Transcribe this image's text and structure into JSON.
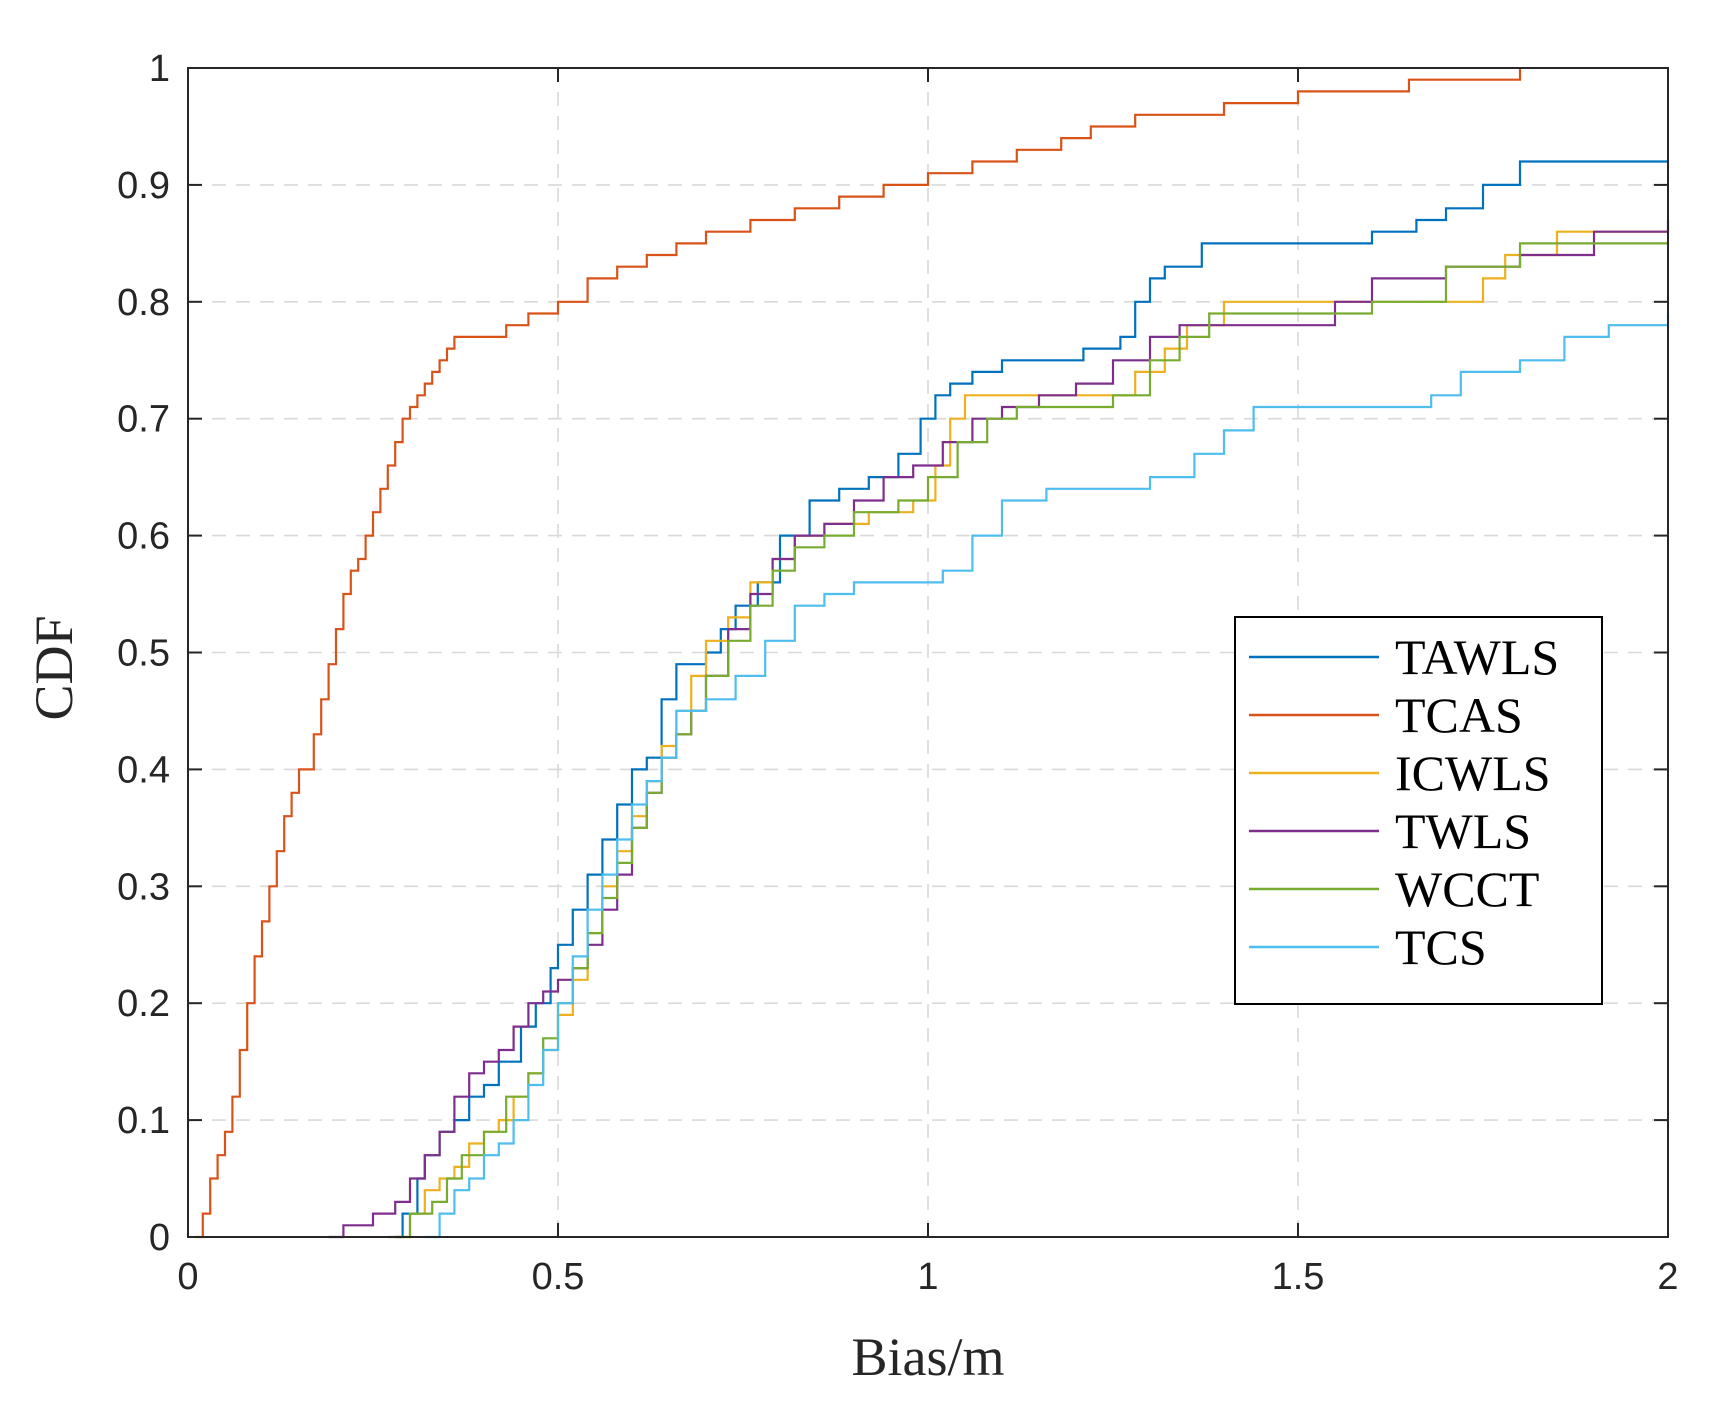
{
  "chart_data": {
    "type": "line",
    "title": "",
    "xlabel": "Bias/m",
    "ylabel": "CDF",
    "xlim": [
      0,
      2
    ],
    "ylim": [
      0,
      1
    ],
    "xticks": [
      0,
      0.5,
      1,
      1.5,
      2
    ],
    "xtick_labels": [
      "0",
      "0.5",
      "1",
      "1.5",
      "2"
    ],
    "yticks": [
      0,
      0.1,
      0.2,
      0.3,
      0.4,
      0.5,
      0.6,
      0.7,
      0.8,
      0.9,
      1
    ],
    "ytick_labels": [
      "0",
      "0.1",
      "0.2",
      "0.3",
      "0.4",
      "0.5",
      "0.6",
      "0.7",
      "0.8",
      "0.9",
      "1"
    ],
    "grid": true,
    "legend_position": "center-right",
    "series": [
      {
        "name": "TAWLS",
        "color": "#0072BD",
        "x": [
          0.28,
          0.29,
          0.31,
          0.32,
          0.34,
          0.36,
          0.38,
          0.4,
          0.42,
          0.45,
          0.47,
          0.49,
          0.5,
          0.52,
          0.54,
          0.56,
          0.58,
          0.6,
          0.62,
          0.64,
          0.66,
          0.7,
          0.72,
          0.74,
          0.77,
          0.8,
          0.84,
          0.88,
          0.92,
          0.96,
          0.99,
          1.01,
          1.03,
          1.06,
          1.1,
          1.16,
          1.21,
          1.26,
          1.28,
          1.3,
          1.32,
          1.37,
          1.5,
          1.6,
          1.66,
          1.7,
          1.75,
          1.8,
          2.0
        ],
        "y": [
          0.0,
          0.02,
          0.05,
          0.07,
          0.09,
          0.1,
          0.12,
          0.13,
          0.15,
          0.18,
          0.2,
          0.23,
          0.25,
          0.28,
          0.31,
          0.34,
          0.37,
          0.4,
          0.41,
          0.46,
          0.49,
          0.5,
          0.52,
          0.54,
          0.56,
          0.6,
          0.63,
          0.64,
          0.65,
          0.67,
          0.7,
          0.72,
          0.73,
          0.74,
          0.75,
          0.75,
          0.76,
          0.77,
          0.8,
          0.82,
          0.83,
          0.85,
          0.85,
          0.86,
          0.87,
          0.88,
          0.9,
          0.92,
          0.92
        ]
      },
      {
        "name": "TCAS",
        "color": "#D95319",
        "x": [
          0.01,
          0.02,
          0.03,
          0.04,
          0.05,
          0.06,
          0.07,
          0.08,
          0.09,
          0.1,
          0.11,
          0.12,
          0.13,
          0.14,
          0.15,
          0.17,
          0.18,
          0.19,
          0.2,
          0.21,
          0.22,
          0.23,
          0.24,
          0.25,
          0.26,
          0.27,
          0.28,
          0.29,
          0.3,
          0.31,
          0.32,
          0.33,
          0.34,
          0.35,
          0.36,
          0.38,
          0.4,
          0.43,
          0.46,
          0.5,
          0.54,
          0.58,
          0.62,
          0.66,
          0.7,
          0.76,
          0.82,
          0.88,
          0.94,
          1.0,
          1.06,
          1.12,
          1.18,
          1.22,
          1.28,
          1.4,
          1.5,
          1.65,
          1.8
        ],
        "y": [
          0.0,
          0.02,
          0.05,
          0.07,
          0.09,
          0.12,
          0.16,
          0.2,
          0.24,
          0.27,
          0.3,
          0.33,
          0.36,
          0.38,
          0.4,
          0.43,
          0.46,
          0.49,
          0.52,
          0.55,
          0.57,
          0.58,
          0.6,
          0.62,
          0.64,
          0.66,
          0.68,
          0.7,
          0.71,
          0.72,
          0.73,
          0.74,
          0.75,
          0.76,
          0.77,
          0.77,
          0.77,
          0.78,
          0.79,
          0.8,
          0.82,
          0.83,
          0.84,
          0.85,
          0.86,
          0.87,
          0.88,
          0.89,
          0.9,
          0.91,
          0.92,
          0.93,
          0.94,
          0.95,
          0.96,
          0.97,
          0.98,
          0.99,
          1.0
        ]
      },
      {
        "name": "ICWLS",
        "color": "#EDB120",
        "x": [
          0.28,
          0.3,
          0.32,
          0.34,
          0.36,
          0.38,
          0.4,
          0.42,
          0.44,
          0.46,
          0.48,
          0.5,
          0.52,
          0.54,
          0.56,
          0.58,
          0.6,
          0.62,
          0.64,
          0.66,
          0.68,
          0.7,
          0.73,
          0.76,
          0.79,
          0.82,
          0.86,
          0.92,
          0.98,
          1.01,
          1.03,
          1.05,
          1.1,
          1.2,
          1.28,
          1.32,
          1.35,
          1.4,
          1.5,
          1.7,
          1.75,
          1.78,
          1.85,
          2.0
        ],
        "y": [
          0.0,
          0.02,
          0.04,
          0.05,
          0.06,
          0.08,
          0.09,
          0.1,
          0.12,
          0.14,
          0.16,
          0.19,
          0.22,
          0.26,
          0.3,
          0.33,
          0.36,
          0.39,
          0.42,
          0.45,
          0.48,
          0.51,
          0.53,
          0.56,
          0.58,
          0.6,
          0.61,
          0.62,
          0.63,
          0.66,
          0.7,
          0.72,
          0.72,
          0.72,
          0.74,
          0.76,
          0.78,
          0.8,
          0.8,
          0.8,
          0.82,
          0.84,
          0.86,
          0.86
        ]
      },
      {
        "name": "TWLS",
        "color": "#7E2F8E",
        "x": [
          0.19,
          0.21,
          0.25,
          0.28,
          0.3,
          0.32,
          0.34,
          0.36,
          0.38,
          0.4,
          0.42,
          0.44,
          0.46,
          0.48,
          0.5,
          0.52,
          0.54,
          0.56,
          0.58,
          0.6,
          0.62,
          0.64,
          0.66,
          0.68,
          0.7,
          0.73,
          0.76,
          0.79,
          0.82,
          0.86,
          0.9,
          0.94,
          0.98,
          1.02,
          1.06,
          1.1,
          1.15,
          1.2,
          1.25,
          1.3,
          1.34,
          1.38,
          1.5,
          1.55,
          1.6,
          1.7,
          1.8,
          1.9,
          2.0
        ],
        "y": [
          0.0,
          0.01,
          0.02,
          0.03,
          0.05,
          0.07,
          0.09,
          0.12,
          0.14,
          0.15,
          0.16,
          0.18,
          0.2,
          0.21,
          0.22,
          0.23,
          0.25,
          0.28,
          0.31,
          0.35,
          0.38,
          0.41,
          0.43,
          0.45,
          0.48,
          0.52,
          0.55,
          0.58,
          0.6,
          0.61,
          0.63,
          0.65,
          0.66,
          0.68,
          0.7,
          0.71,
          0.72,
          0.73,
          0.75,
          0.77,
          0.78,
          0.78,
          0.78,
          0.8,
          0.82,
          0.83,
          0.84,
          0.86,
          0.87
        ]
      },
      {
        "name": "WCCT",
        "color": "#77AC30",
        "x": [
          0.27,
          0.3,
          0.33,
          0.35,
          0.37,
          0.4,
          0.43,
          0.46,
          0.48,
          0.5,
          0.52,
          0.54,
          0.56,
          0.58,
          0.6,
          0.62,
          0.64,
          0.66,
          0.68,
          0.7,
          0.73,
          0.76,
          0.79,
          0.82,
          0.86,
          0.9,
          0.96,
          1.0,
          1.04,
          1.08,
          1.12,
          1.18,
          1.25,
          1.3,
          1.34,
          1.38,
          1.5,
          1.6,
          1.7,
          1.8,
          2.0
        ],
        "y": [
          0.0,
          0.02,
          0.03,
          0.05,
          0.07,
          0.09,
          0.12,
          0.14,
          0.17,
          0.2,
          0.23,
          0.26,
          0.29,
          0.32,
          0.35,
          0.38,
          0.41,
          0.43,
          0.45,
          0.48,
          0.51,
          0.54,
          0.57,
          0.59,
          0.6,
          0.62,
          0.63,
          0.65,
          0.68,
          0.7,
          0.71,
          0.71,
          0.72,
          0.75,
          0.77,
          0.79,
          0.79,
          0.8,
          0.83,
          0.85,
          0.85
        ]
      },
      {
        "name": "TCS",
        "color": "#4DBEEE",
        "x": [
          0.32,
          0.34,
          0.36,
          0.38,
          0.4,
          0.42,
          0.44,
          0.46,
          0.48,
          0.5,
          0.52,
          0.54,
          0.56,
          0.58,
          0.6,
          0.62,
          0.64,
          0.66,
          0.7,
          0.74,
          0.78,
          0.82,
          0.86,
          0.9,
          0.96,
          1.02,
          1.06,
          1.1,
          1.16,
          1.22,
          1.3,
          1.36,
          1.4,
          1.44,
          1.5,
          1.6,
          1.68,
          1.72,
          1.8,
          1.86,
          1.92,
          2.0
        ],
        "y": [
          0.0,
          0.02,
          0.04,
          0.05,
          0.07,
          0.08,
          0.1,
          0.13,
          0.16,
          0.2,
          0.24,
          0.28,
          0.31,
          0.34,
          0.37,
          0.39,
          0.41,
          0.45,
          0.46,
          0.48,
          0.51,
          0.54,
          0.55,
          0.56,
          0.56,
          0.57,
          0.6,
          0.63,
          0.64,
          0.64,
          0.65,
          0.67,
          0.69,
          0.71,
          0.71,
          0.71,
          0.72,
          0.74,
          0.75,
          0.77,
          0.78,
          0.79
        ]
      }
    ]
  }
}
